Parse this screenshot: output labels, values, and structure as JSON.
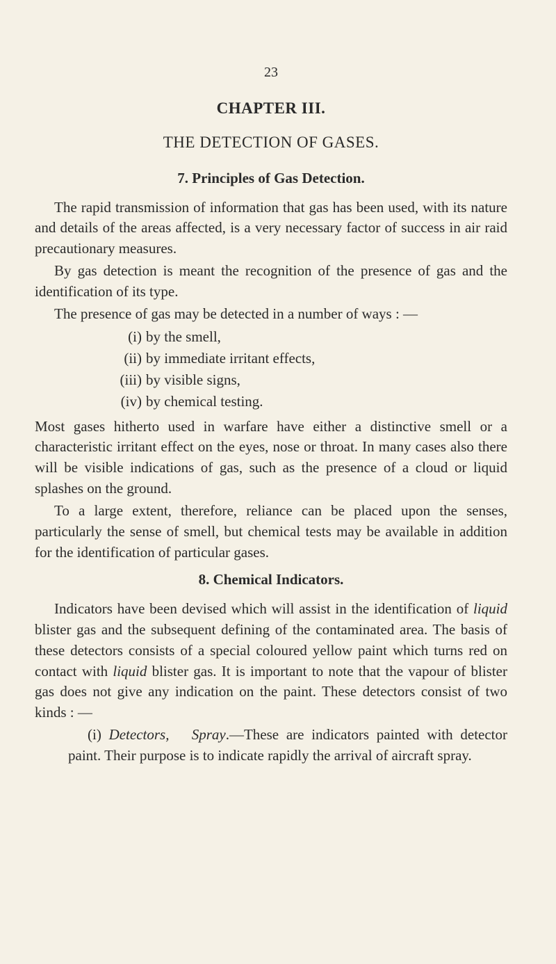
{
  "pageNumber": "23",
  "chapterTitle": "CHAPTER III.",
  "chapterSubtitle": "THE DETECTION OF GASES.",
  "section7": {
    "heading": "7. Principles of Gas Detection.",
    "p1": "The rapid transmission of information that gas has been used, with its nature and details of the areas affected, is a very necessary factor of success in air raid precautionary measures.",
    "p2": "By gas detection is meant the recognition of the presence of gas and the identification of its type.",
    "p3": "The presence of gas may be detected in a number of ways : —",
    "list": [
      {
        "num": "(i)",
        "text": "by the smell,"
      },
      {
        "num": "(ii)",
        "text": "by immediate irritant effects,"
      },
      {
        "num": "(iii)",
        "text": "by visible signs,"
      },
      {
        "num": "(iv)",
        "text": "by chemical testing."
      }
    ],
    "p4": "Most gases hitherto used in warfare have either a dis­tinctive smell or a characteristic irritant effect on the eyes, nose or throat. In many cases also there will be visible indications of gas, such as the presence of a cloud or liquid splashes on the ground.",
    "p5": "To a large extent, therefore, reliance can be placed upon the senses, particularly the sense of smell, but chemical tests may be available in addition for the identification of particular gases."
  },
  "section8": {
    "heading": "8. Chemical Indicators.",
    "p1a": "Indicators have been devised which will assist in the identification of ",
    "p1_liquid1": "liquid",
    "p1b": " blister gas and the subse­quent defining of the contaminated area. The basis of these detectors consists of a special coloured yellow paint which turns red on contact with ",
    "p1_liquid2": "liquid",
    "p1c": " blister gas. It is important to note that the vapour of blister gas does not give any indication on the paint. These detectors consist of two kinds : —",
    "sub_i_a": "(i) ",
    "sub_i_det": "Detectors,",
    "sub_i_sp": "Spray",
    "sub_i_b": ".—These are indicators painted with detector paint. Their purpose is to indicate rapidly the arrival of aircraft spray."
  }
}
